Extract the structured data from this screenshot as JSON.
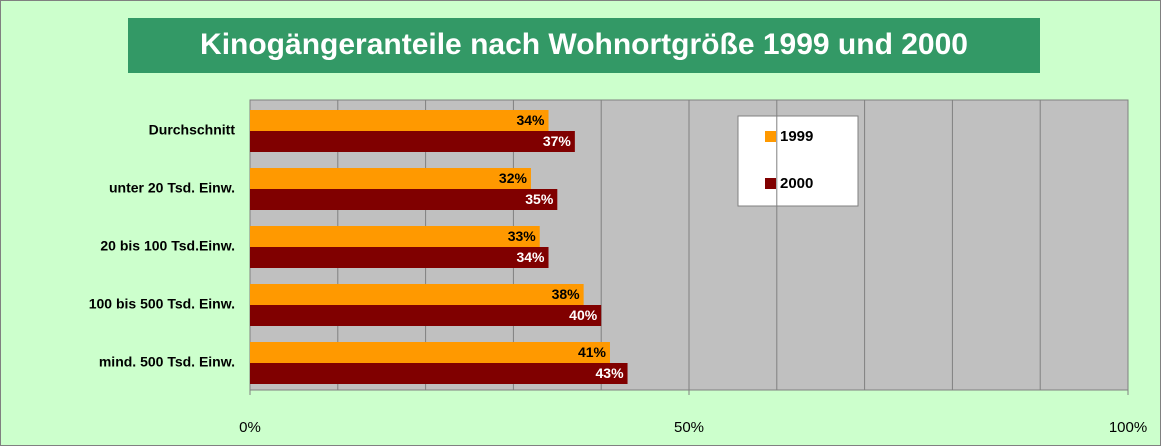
{
  "chart_data": {
    "type": "hbar",
    "title": "Kinogängeranteile nach Wohnortgröße 1999 und 2000",
    "categories": [
      "Durchschnitt",
      "unter 20 Tsd. Einw.",
      "20 bis 100 Tsd.Einw.",
      "100 bis 500 Tsd. Einw.",
      "mind. 500 Tsd. Einw."
    ],
    "series": [
      {
        "name": "1999",
        "color": "#ff9900",
        "label_color": "#000000",
        "values": [
          34,
          32,
          33,
          38,
          41
        ],
        "value_labels": [
          "34%",
          "32%",
          "33%",
          "38%",
          "41%"
        ]
      },
      {
        "name": "2000",
        "color": "#800000",
        "label_color": "#ffffff",
        "values": [
          37,
          35,
          34,
          40,
          43
        ],
        "value_labels": [
          "37%",
          "35%",
          "34%",
          "40%",
          "43%"
        ]
      }
    ],
    "xlim": [
      0,
      100
    ],
    "xticks": [
      {
        "value": 0,
        "label": "0%"
      },
      {
        "value": 50,
        "label": "50%"
      },
      {
        "value": 100,
        "label": "100%"
      }
    ],
    "xgrid": [
      0,
      10,
      20,
      30,
      40,
      50,
      60,
      70,
      80,
      90,
      100
    ],
    "grid": true
  }
}
